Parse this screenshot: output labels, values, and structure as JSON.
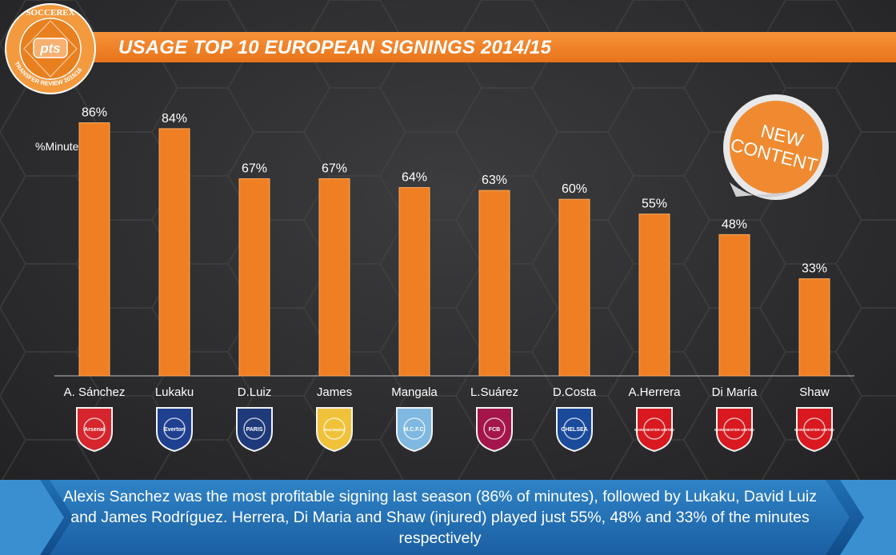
{
  "header": {
    "title": "USAGE TOP 10 EUROPEAN SIGNINGS 2014/15",
    "logo_text_top": "SOCCEREX",
    "logo_text_center": "pts",
    "logo_text_bottom": "TRANSFER REVIEW 2015/16"
  },
  "badge": {
    "line1": "NEW",
    "line2": "CONTENT"
  },
  "chart_data": {
    "type": "bar",
    "ylabel": "%Minutes",
    "ylim": [
      0,
      100
    ],
    "categories": [
      "A. Sánchez",
      "Lukaku",
      "D.Luiz",
      "James",
      "Mangala",
      "L.Suárez",
      "D.Costa",
      "A.Herrera",
      "Di María",
      "Shaw"
    ],
    "values": [
      86,
      84,
      67,
      67,
      64,
      63,
      60,
      55,
      48,
      33
    ],
    "data_labels": [
      "86%",
      "84%",
      "67%",
      "67%",
      "64%",
      "63%",
      "60%",
      "55%",
      "48%",
      "33%"
    ],
    "club_logos": [
      {
        "text": "Arsenal",
        "color": "#d6252c"
      },
      {
        "text": "Everton",
        "color": "#1f3f8f"
      },
      {
        "text": "PARIS",
        "color": "#1e3a7a"
      },
      {
        "text": "Real Madrid",
        "color": "#f0c23a"
      },
      {
        "text": "M.C.F.C.",
        "color": "#7fb8e0"
      },
      {
        "text": "FCB",
        "color": "#a3154b"
      },
      {
        "text": "CHELSEA",
        "color": "#1a4a9a"
      },
      {
        "text": "MANCHESTER UNITED",
        "color": "#d9191f"
      },
      {
        "text": "MANCHESTER UNITED",
        "color": "#d9191f"
      },
      {
        "text": "MANCHESTER UNITED",
        "color": "#d9191f"
      }
    ],
    "bar_color": "#f07f23",
    "grid": false
  },
  "footer": {
    "text": "Alexis Sanchez was the most profitable signing last season (86% of minutes), followed by Lukaku, David Luiz and James Rodríguez. Herrera, Di Maria and Shaw (injured) played just 55%, 48% and 33% of the minutes respectively"
  }
}
